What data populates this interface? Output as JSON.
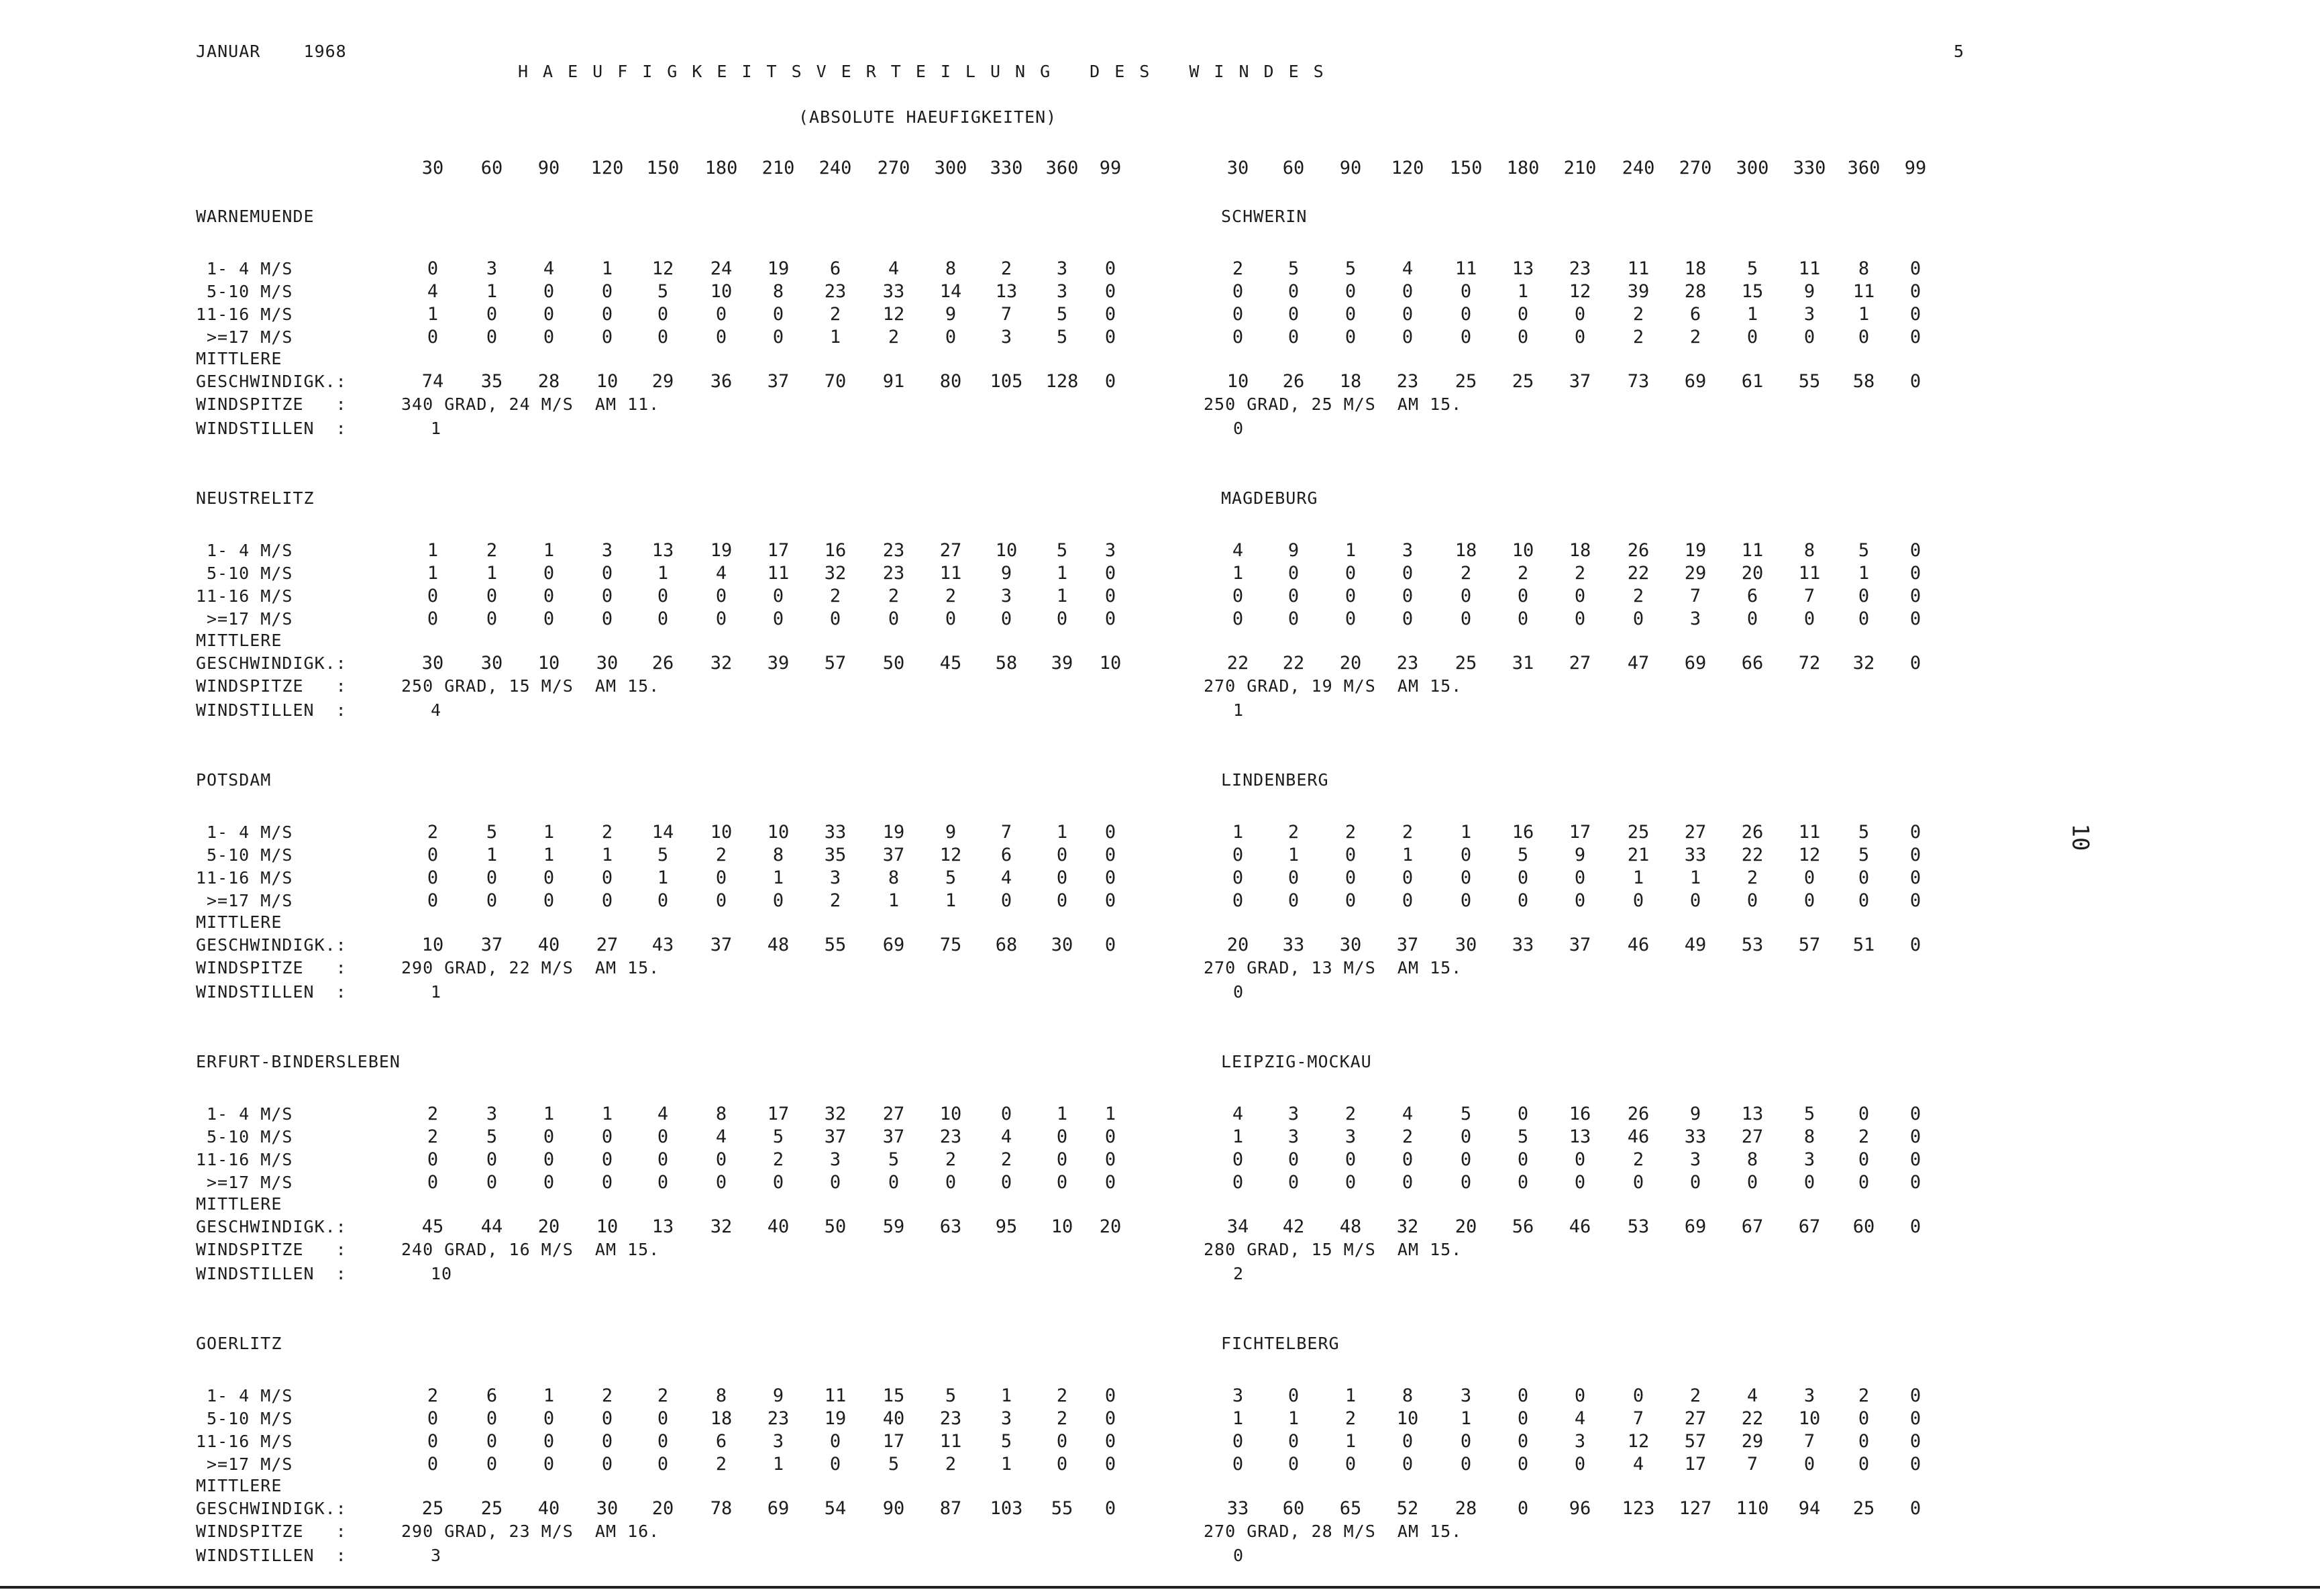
{
  "header": {
    "month_year": "JANUAR    1968",
    "title": "HAEUFIGKEITSVERTEILUNG DES WINDES",
    "subtitle": "(ABSOLUTE HAEUFIGKEITEN)",
    "page_number": "5",
    "side_number": "10",
    "directions": [
      "30",
      "60",
      "90",
      "120",
      "150",
      "180",
      "210",
      "240",
      "270",
      "300",
      "330",
      "360",
      "99"
    ]
  },
  "labels": {
    "r1": "1- 4 M/S",
    "r2": "5-10 M/S",
    "r3": "11-16 M/S",
    "r4": ">=17 M/S",
    "mittlere": "MITTLERE",
    "gesch": "GESCHWINDIGK.:",
    "spitze": "WINDSPITZE   :",
    "stillen": "WINDSTILLEN  :"
  },
  "stations": [
    {
      "name": "WARNEMUENDE",
      "r1": [
        "0",
        "3",
        "4",
        "1",
        "12",
        "24",
        "19",
        "6",
        "4",
        "8",
        "2",
        "3",
        "0"
      ],
      "r2": [
        "4",
        "1",
        "0",
        "0",
        "5",
        "10",
        "8",
        "23",
        "33",
        "14",
        "13",
        "3",
        "0"
      ],
      "r3": [
        "1",
        "0",
        "0",
        "0",
        "0",
        "0",
        "0",
        "2",
        "12",
        "9",
        "7",
        "5",
        "0"
      ],
      "r4": [
        "0",
        "0",
        "0",
        "0",
        "0",
        "0",
        "0",
        "1",
        "2",
        "0",
        "3",
        "5",
        "0"
      ],
      "g": [
        "74",
        "35",
        "28",
        "10",
        "29",
        "36",
        "37",
        "70",
        "91",
        "80",
        "105",
        "128",
        "0"
      ],
      "spitze": "340 GRAD, 24 M/S  AM 11.",
      "stillen": "1"
    },
    {
      "name": "SCHWERIN",
      "r1": [
        "2",
        "5",
        "5",
        "4",
        "11",
        "13",
        "23",
        "11",
        "18",
        "5",
        "11",
        "8",
        "0"
      ],
      "r2": [
        "0",
        "0",
        "0",
        "0",
        "0",
        "1",
        "12",
        "39",
        "28",
        "15",
        "9",
        "11",
        "0"
      ],
      "r3": [
        "0",
        "0",
        "0",
        "0",
        "0",
        "0",
        "0",
        "2",
        "6",
        "1",
        "3",
        "1",
        "0"
      ],
      "r4": [
        "0",
        "0",
        "0",
        "0",
        "0",
        "0",
        "0",
        "2",
        "2",
        "0",
        "0",
        "0",
        "0"
      ],
      "g": [
        "10",
        "26",
        "18",
        "23",
        "25",
        "25",
        "37",
        "73",
        "69",
        "61",
        "55",
        "58",
        "0"
      ],
      "spitze": "250 GRAD, 25 M/S  AM 15.",
      "stillen": "0"
    },
    {
      "name": "NEUSTRELITZ",
      "r1": [
        "1",
        "2",
        "1",
        "3",
        "13",
        "19",
        "17",
        "16",
        "23",
        "27",
        "10",
        "5",
        "3"
      ],
      "r2": [
        "1",
        "1",
        "0",
        "0",
        "1",
        "4",
        "11",
        "32",
        "23",
        "11",
        "9",
        "1",
        "0"
      ],
      "r3": [
        "0",
        "0",
        "0",
        "0",
        "0",
        "0",
        "0",
        "2",
        "2",
        "2",
        "3",
        "1",
        "0"
      ],
      "r4": [
        "0",
        "0",
        "0",
        "0",
        "0",
        "0",
        "0",
        "0",
        "0",
        "0",
        "0",
        "0",
        "0"
      ],
      "g": [
        "30",
        "30",
        "10",
        "30",
        "26",
        "32",
        "39",
        "57",
        "50",
        "45",
        "58",
        "39",
        "10"
      ],
      "spitze": "250 GRAD, 15 M/S  AM 15.",
      "stillen": "4"
    },
    {
      "name": "MAGDEBURG",
      "r1": [
        "4",
        "9",
        "1",
        "3",
        "18",
        "10",
        "18",
        "26",
        "19",
        "11",
        "8",
        "5",
        "0"
      ],
      "r2": [
        "1",
        "0",
        "0",
        "0",
        "2",
        "2",
        "2",
        "22",
        "29",
        "20",
        "11",
        "1",
        "0"
      ],
      "r3": [
        "0",
        "0",
        "0",
        "0",
        "0",
        "0",
        "0",
        "2",
        "7",
        "6",
        "7",
        "0",
        "0"
      ],
      "r4": [
        "0",
        "0",
        "0",
        "0",
        "0",
        "0",
        "0",
        "0",
        "3",
        "0",
        "0",
        "0",
        "0"
      ],
      "g": [
        "22",
        "22",
        "20",
        "23",
        "25",
        "31",
        "27",
        "47",
        "69",
        "66",
        "72",
        "32",
        "0"
      ],
      "spitze": "270 GRAD, 19 M/S  AM 15.",
      "stillen": "1"
    },
    {
      "name": "POTSDAM",
      "r1": [
        "2",
        "5",
        "1",
        "2",
        "14",
        "10",
        "10",
        "33",
        "19",
        "9",
        "7",
        "1",
        "0"
      ],
      "r2": [
        "0",
        "1",
        "1",
        "1",
        "5",
        "2",
        "8",
        "35",
        "37",
        "12",
        "6",
        "0",
        "0"
      ],
      "r3": [
        "0",
        "0",
        "0",
        "0",
        "1",
        "0",
        "1",
        "3",
        "8",
        "5",
        "4",
        "0",
        "0"
      ],
      "r4": [
        "0",
        "0",
        "0",
        "0",
        "0",
        "0",
        "0",
        "2",
        "1",
        "1",
        "0",
        "0",
        "0"
      ],
      "g": [
        "10",
        "37",
        "40",
        "27",
        "43",
        "37",
        "48",
        "55",
        "69",
        "75",
        "68",
        "30",
        "0"
      ],
      "spitze": "290 GRAD, 22 M/S  AM 15.",
      "stillen": "1"
    },
    {
      "name": "LINDENBERG",
      "r1": [
        "1",
        "2",
        "2",
        "2",
        "1",
        "16",
        "17",
        "25",
        "27",
        "26",
        "11",
        "5",
        "0"
      ],
      "r2": [
        "0",
        "1",
        "0",
        "1",
        "0",
        "5",
        "9",
        "21",
        "33",
        "22",
        "12",
        "5",
        "0"
      ],
      "r3": [
        "0",
        "0",
        "0",
        "0",
        "0",
        "0",
        "0",
        "1",
        "1",
        "2",
        "0",
        "0",
        "0"
      ],
      "r4": [
        "0",
        "0",
        "0",
        "0",
        "0",
        "0",
        "0",
        "0",
        "0",
        "0",
        "0",
        "0",
        "0"
      ],
      "g": [
        "20",
        "33",
        "30",
        "37",
        "30",
        "33",
        "37",
        "46",
        "49",
        "53",
        "57",
        "51",
        "0"
      ],
      "spitze": "270 GRAD, 13 M/S  AM 15.",
      "stillen": "0"
    },
    {
      "name": "ERFURT-BINDERSLEBEN",
      "r1": [
        "2",
        "3",
        "1",
        "1",
        "4",
        "8",
        "17",
        "32",
        "27",
        "10",
        "0",
        "1",
        "1"
      ],
      "r2": [
        "2",
        "5",
        "0",
        "0",
        "0",
        "4",
        "5",
        "37",
        "37",
        "23",
        "4",
        "0",
        "0"
      ],
      "r3": [
        "0",
        "0",
        "0",
        "0",
        "0",
        "0",
        "2",
        "3",
        "5",
        "2",
        "2",
        "0",
        "0"
      ],
      "r4": [
        "0",
        "0",
        "0",
        "0",
        "0",
        "0",
        "0",
        "0",
        "0",
        "0",
        "0",
        "0",
        "0"
      ],
      "g": [
        "45",
        "44",
        "20",
        "10",
        "13",
        "32",
        "40",
        "50",
        "59",
        "63",
        "95",
        "10",
        "20"
      ],
      "spitze": "240 GRAD, 16 M/S  AM 15.",
      "stillen": "10"
    },
    {
      "name": "LEIPZIG-MOCKAU",
      "r1": [
        "4",
        "3",
        "2",
        "4",
        "5",
        "0",
        "16",
        "26",
        "9",
        "13",
        "5",
        "0",
        "0"
      ],
      "r2": [
        "1",
        "3",
        "3",
        "2",
        "0",
        "5",
        "13",
        "46",
        "33",
        "27",
        "8",
        "2",
        "0"
      ],
      "r3": [
        "0",
        "0",
        "0",
        "0",
        "0",
        "0",
        "0",
        "2",
        "3",
        "8",
        "3",
        "0",
        "0"
      ],
      "r4": [
        "0",
        "0",
        "0",
        "0",
        "0",
        "0",
        "0",
        "0",
        "0",
        "0",
        "0",
        "0",
        "0"
      ],
      "g": [
        "34",
        "42",
        "48",
        "32",
        "20",
        "56",
        "46",
        "53",
        "69",
        "67",
        "67",
        "60",
        "0"
      ],
      "spitze": "280 GRAD, 15 M/S  AM 15.",
      "stillen": "2"
    },
    {
      "name": "GOERLITZ",
      "r1": [
        "2",
        "6",
        "1",
        "2",
        "2",
        "8",
        "9",
        "11",
        "15",
        "5",
        "1",
        "2",
        "0"
      ],
      "r2": [
        "0",
        "0",
        "0",
        "0",
        "0",
        "18",
        "23",
        "19",
        "40",
        "23",
        "3",
        "2",
        "0"
      ],
      "r3": [
        "0",
        "0",
        "0",
        "0",
        "0",
        "6",
        "3",
        "0",
        "17",
        "11",
        "5",
        "0",
        "0"
      ],
      "r4": [
        "0",
        "0",
        "0",
        "0",
        "0",
        "2",
        "1",
        "0",
        "5",
        "2",
        "1",
        "0",
        "0"
      ],
      "g": [
        "25",
        "25",
        "40",
        "30",
        "20",
        "78",
        "69",
        "54",
        "90",
        "87",
        "103",
        "55",
        "0"
      ],
      "spitze": "290 GRAD, 23 M/S  AM 16.",
      "stillen": "3"
    },
    {
      "name": "FICHTELBERG",
      "r1": [
        "3",
        "0",
        "1",
        "8",
        "3",
        "0",
        "0",
        "0",
        "2",
        "4",
        "3",
        "2",
        "0"
      ],
      "r2": [
        "1",
        "1",
        "2",
        "10",
        "1",
        "0",
        "4",
        "7",
        "27",
        "22",
        "10",
        "0",
        "0"
      ],
      "r3": [
        "0",
        "0",
        "1",
        "0",
        "0",
        "0",
        "3",
        "12",
        "57",
        "29",
        "7",
        "0",
        "0"
      ],
      "r4": [
        "0",
        "0",
        "0",
        "0",
        "0",
        "0",
        "0",
        "4",
        "17",
        "7",
        "0",
        "0",
        "0"
      ],
      "g": [
        "33",
        "60",
        "65",
        "52",
        "28",
        "0",
        "96",
        "123",
        "127",
        "110",
        "94",
        "25",
        "0"
      ],
      "spitze": "270 GRAD, 28 M/S  AM 15.",
      "stillen": "0"
    }
  ]
}
